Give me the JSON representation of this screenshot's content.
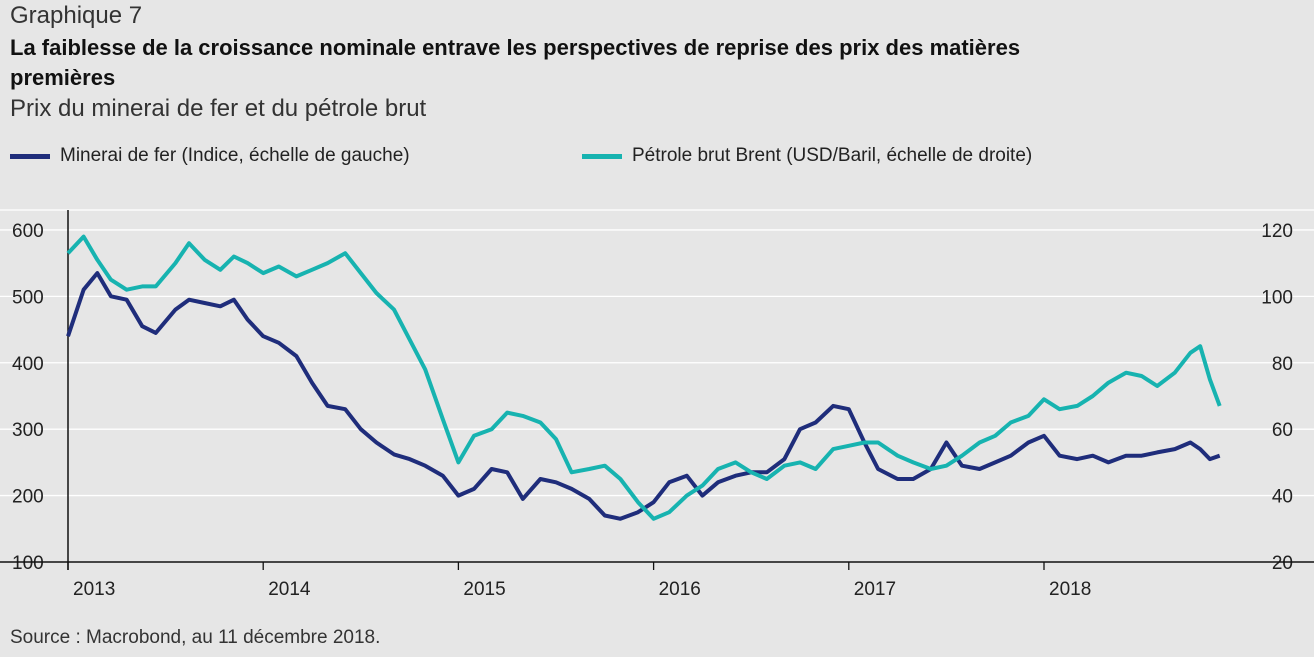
{
  "header": {
    "kicker": "Graphique 7",
    "title": "La faiblesse de la croissance nominale entrave les perspectives de reprise des prix des matières premières",
    "subtitle": "Prix du minerai de fer et du pétrole brut"
  },
  "legend": [
    {
      "label": "Minerai de fer (Indice, échelle de gauche)",
      "color": "#1f2d7b"
    },
    {
      "label": "Pétrole brut Brent (USD/Baril, échelle de droite)",
      "color": "#17b3b0"
    }
  ],
  "source": "Source : Macrobond, au 11 décembre 2018.",
  "chart_data": {
    "type": "line",
    "x_ticks": [
      "2013",
      "2014",
      "2015",
      "2016",
      "2017",
      "2018"
    ],
    "y_left": {
      "ticks": [
        100,
        200,
        300,
        400,
        500,
        600
      ],
      "range": [
        100,
        630
      ]
    },
    "y_right": {
      "ticks": [
        20,
        40,
        60,
        80,
        100,
        120
      ],
      "range": [
        20,
        126
      ]
    },
    "grid": true,
    "legend_position": "top-left",
    "series": [
      {
        "name": "Minerai de fer (Indice, échelle de gauche)",
        "axis": "left",
        "color": "#1f2d7b",
        "x": [
          2013.0,
          2013.08,
          2013.15,
          2013.22,
          2013.3,
          2013.38,
          2013.45,
          2013.55,
          2013.62,
          2013.7,
          2013.78,
          2013.85,
          2013.92,
          2014.0,
          2014.08,
          2014.17,
          2014.25,
          2014.33,
          2014.42,
          2014.5,
          2014.58,
          2014.67,
          2014.75,
          2014.83,
          2014.92,
          2015.0,
          2015.08,
          2015.17,
          2015.25,
          2015.33,
          2015.42,
          2015.5,
          2015.58,
          2015.67,
          2015.75,
          2015.83,
          2015.92,
          2016.0,
          2016.08,
          2016.17,
          2016.25,
          2016.33,
          2016.42,
          2016.5,
          2016.58,
          2016.67,
          2016.75,
          2016.83,
          2016.92,
          2017.0,
          2017.08,
          2017.15,
          2017.25,
          2017.33,
          2017.42,
          2017.5,
          2017.58,
          2017.67,
          2017.75,
          2017.83,
          2017.92,
          2018.0,
          2018.08,
          2018.17,
          2018.25,
          2018.33,
          2018.42,
          2018.5,
          2018.58,
          2018.67,
          2018.75,
          2018.8,
          2018.85,
          2018.9
        ],
        "values": [
          440,
          510,
          535,
          500,
          495,
          455,
          445,
          480,
          495,
          490,
          485,
          495,
          465,
          440,
          430,
          410,
          370,
          335,
          330,
          300,
          280,
          262,
          255,
          245,
          230,
          200,
          210,
          240,
          235,
          195,
          225,
          220,
          210,
          195,
          170,
          165,
          175,
          190,
          220,
          230,
          200,
          220,
          230,
          235,
          235,
          255,
          300,
          310,
          335,
          330,
          280,
          240,
          225,
          225,
          240,
          280,
          245,
          240,
          250,
          260,
          280,
          290,
          260,
          255,
          260,
          250,
          260,
          260,
          265,
          270,
          280,
          270,
          255,
          260
        ]
      },
      {
        "name": "Pétrole brut Brent (USD/Baril, échelle de droite)",
        "axis": "right",
        "color": "#17b3b0",
        "x": [
          2013.0,
          2013.08,
          2013.15,
          2013.22,
          2013.3,
          2013.38,
          2013.45,
          2013.55,
          2013.62,
          2013.7,
          2013.78,
          2013.85,
          2013.92,
          2014.0,
          2014.08,
          2014.17,
          2014.25,
          2014.33,
          2014.42,
          2014.5,
          2014.58,
          2014.67,
          2014.75,
          2014.83,
          2014.92,
          2015.0,
          2015.08,
          2015.17,
          2015.25,
          2015.33,
          2015.42,
          2015.5,
          2015.58,
          2015.67,
          2015.75,
          2015.83,
          2015.92,
          2016.0,
          2016.08,
          2016.17,
          2016.25,
          2016.33,
          2016.42,
          2016.5,
          2016.58,
          2016.67,
          2016.75,
          2016.83,
          2016.92,
          2017.0,
          2017.08,
          2017.15,
          2017.25,
          2017.33,
          2017.42,
          2017.5,
          2017.58,
          2017.67,
          2017.75,
          2017.83,
          2017.92,
          2018.0,
          2018.08,
          2018.17,
          2018.25,
          2018.33,
          2018.42,
          2018.5,
          2018.58,
          2018.67,
          2018.75,
          2018.8,
          2018.85,
          2018.9
        ],
        "values": [
          113,
          118,
          111,
          105,
          102,
          103,
          103,
          110,
          116,
          111,
          108,
          112,
          110,
          107,
          109,
          106,
          108,
          110,
          113,
          107,
          101,
          96,
          87,
          78,
          63,
          50,
          58,
          60,
          65,
          64,
          62,
          57,
          47,
          48,
          49,
          45,
          38,
          33,
          35,
          40,
          43,
          48,
          50,
          47,
          45,
          49,
          50,
          48,
          54,
          55,
          56,
          56,
          52,
          50,
          48,
          49,
          52,
          56,
          58,
          62,
          64,
          69,
          66,
          67,
          70,
          74,
          77,
          76,
          73,
          77,
          83,
          85,
          75,
          67
        ]
      }
    ]
  }
}
